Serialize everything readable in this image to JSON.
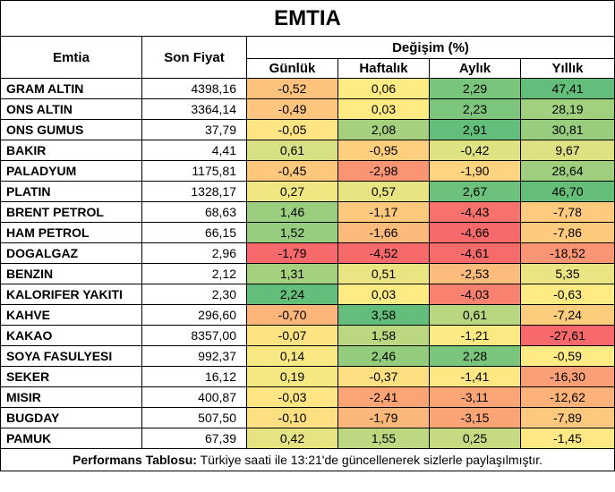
{
  "title": "EMTIA",
  "headers": {
    "commodity": "Emtia",
    "last_price": "Son Fiyat",
    "change": "Değişim (%)",
    "daily": "Günlük",
    "weekly": "Haftalık",
    "monthly": "Aylık",
    "yearly": "Yıllık"
  },
  "colors": {
    "strong_green": "#63be7b",
    "light_green": "#a9d27f",
    "yellow": "#ffeb84",
    "orange": "#fdb57a",
    "strong_red": "#f8696b"
  },
  "rows": [
    {
      "name": "GRAM ALTIN",
      "price": "4398,16",
      "daily": "-0,52",
      "weekly": "0,06",
      "monthly": "2,29",
      "yearly": "47,41"
    },
    {
      "name": "ONS ALTIN",
      "price": "3364,14",
      "daily": "-0,49",
      "weekly": "0,03",
      "monthly": "2,23",
      "yearly": "28,19"
    },
    {
      "name": "ONS GUMUS",
      "price": "37,79",
      "daily": "-0,05",
      "weekly": "2,08",
      "monthly": "2,91",
      "yearly": "30,81"
    },
    {
      "name": "BAKIR",
      "price": "4,41",
      "daily": "0,61",
      "weekly": "-0,95",
      "monthly": "-0,42",
      "yearly": "9,67"
    },
    {
      "name": "PALADYUM",
      "price": "1175,81",
      "daily": "-0,45",
      "weekly": "-2,98",
      "monthly": "-1,90",
      "yearly": "28,64"
    },
    {
      "name": "PLATIN",
      "price": "1328,17",
      "daily": "0,27",
      "weekly": "0,57",
      "monthly": "2,67",
      "yearly": "46,70"
    },
    {
      "name": "BRENT PETROL",
      "price": "68,63",
      "daily": "1,46",
      "weekly": "-1,17",
      "monthly": "-4,43",
      "yearly": "-7,78"
    },
    {
      "name": "HAM PETROL",
      "price": "66,15",
      "daily": "1,52",
      "weekly": "-1,66",
      "monthly": "-4,66",
      "yearly": "-7,86"
    },
    {
      "name": "DOGALGAZ",
      "price": "2,96",
      "daily": "-1,79",
      "weekly": "-4,52",
      "monthly": "-4,61",
      "yearly": "-18,52"
    },
    {
      "name": "BENZIN",
      "price": "2,12",
      "daily": "1,31",
      "weekly": "0,51",
      "monthly": "-2,53",
      "yearly": "5,35"
    },
    {
      "name": "KALORIFER YAKITI",
      "price": "2,30",
      "daily": "2,24",
      "weekly": "0,03",
      "monthly": "-4,03",
      "yearly": "-0,63"
    },
    {
      "name": "KAHVE",
      "price": "296,60",
      "daily": "-0,70",
      "weekly": "3,58",
      "monthly": "0,61",
      "yearly": "-7,24"
    },
    {
      "name": "KAKAO",
      "price": "8357,00",
      "daily": "-0,07",
      "weekly": "1,58",
      "monthly": "-1,21",
      "yearly": "-27,61"
    },
    {
      "name": "SOYA FASULYESI",
      "price": "992,37",
      "daily": "0,14",
      "weekly": "2,46",
      "monthly": "2,28",
      "yearly": "-0,59"
    },
    {
      "name": "SEKER",
      "price": "16,12",
      "daily": "0,19",
      "weekly": "-0,37",
      "monthly": "-1,41",
      "yearly": "-16,30"
    },
    {
      "name": "MISIR",
      "price": "400,87",
      "daily": "-0,03",
      "weekly": "-2,41",
      "monthly": "-3,11",
      "yearly": "-12,62"
    },
    {
      "name": "BUGDAY",
      "price": "507,50",
      "daily": "-0,10",
      "weekly": "-1,79",
      "monthly": "-3,15",
      "yearly": "-7,89"
    },
    {
      "name": "PAMUK",
      "price": "67,39",
      "daily": "0,42",
      "weekly": "1,55",
      "monthly": "0,25",
      "yearly": "-1,45"
    }
  ],
  "footer": {
    "label": "Performans Tablosu:",
    "text": " Türkiye saati ile 13:21'de güncellenerek sizlerle paylaşılmıştır."
  }
}
